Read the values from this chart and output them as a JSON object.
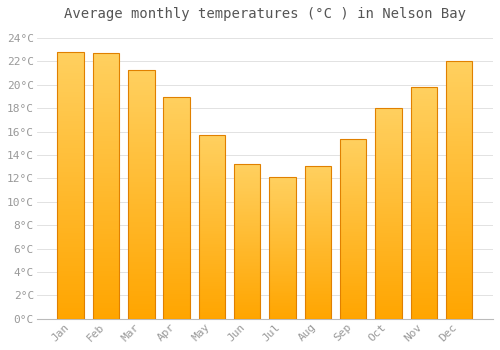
{
  "title": "Average monthly temperatures (°C ) in Nelson Bay",
  "months": [
    "Jan",
    "Feb",
    "Mar",
    "Apr",
    "May",
    "Jun",
    "Jul",
    "Aug",
    "Sep",
    "Oct",
    "Nov",
    "Dec"
  ],
  "values": [
    22.8,
    22.7,
    21.3,
    19.0,
    15.7,
    13.2,
    12.1,
    13.1,
    15.4,
    18.0,
    19.8,
    22.0
  ],
  "bar_color_top": "#FFD060",
  "bar_color_bottom": "#FFA500",
  "bar_edge_color": "#E08000",
  "background_color": "#FFFFFF",
  "grid_color": "#DDDDDD",
  "text_color": "#999999",
  "ylim": [
    0,
    25
  ],
  "yticks": [
    0,
    2,
    4,
    6,
    8,
    10,
    12,
    14,
    16,
    18,
    20,
    22,
    24
  ],
  "title_fontsize": 10,
  "tick_fontsize": 8,
  "bar_width": 0.75
}
